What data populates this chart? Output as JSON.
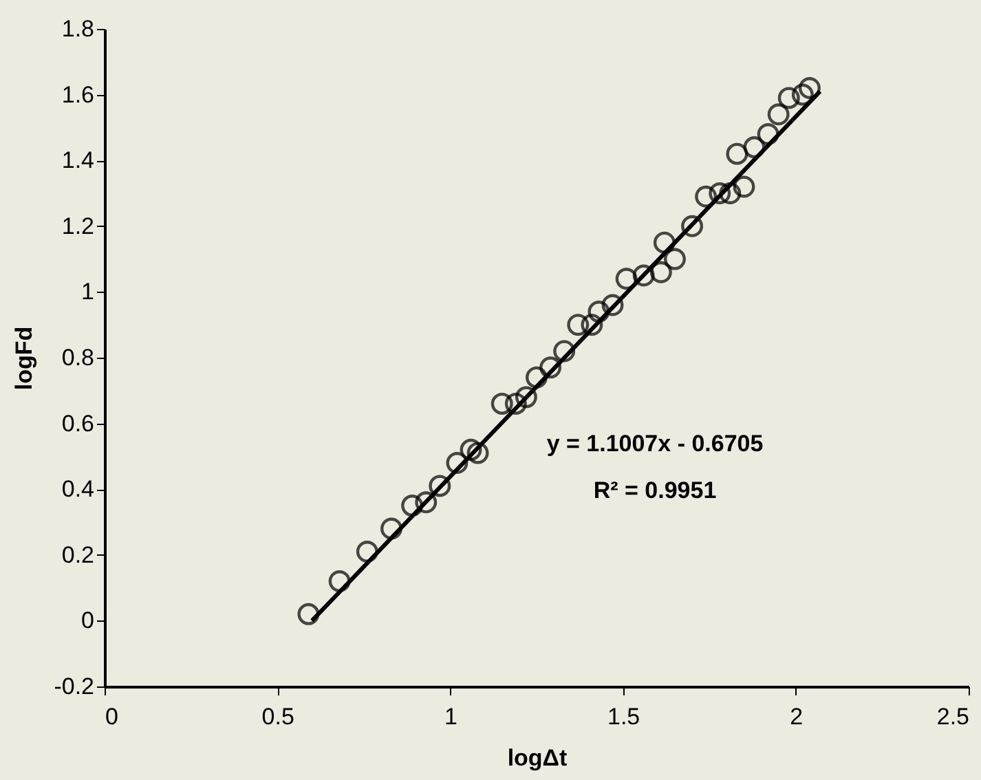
{
  "chart_data": {
    "type": "scatter",
    "xlabel": "logΔt",
    "ylabel": "logFd",
    "xlim": [
      0,
      2.5
    ],
    "xticks": [
      0,
      0.5,
      1,
      1.5,
      2,
      2.5
    ],
    "ylim": [
      -0.2,
      1.8
    ],
    "yticks": [
      -0.2,
      0,
      0.2,
      0.4,
      0.6,
      0.8,
      1,
      1.2,
      1.4,
      1.6,
      1.8
    ],
    "grid": false,
    "annotations": [
      "y = 1.1007x - 0.6705",
      "R² = 0.9951"
    ],
    "series": [
      {
        "marker": "circle",
        "color": "#000000",
        "x": [
          0.59,
          0.68,
          0.76,
          0.83,
          0.89,
          0.93,
          0.97,
          1.02,
          1.06,
          1.08,
          1.15,
          1.19,
          1.22,
          1.25,
          1.29,
          1.33,
          1.37,
          1.41,
          1.43,
          1.47,
          1.51,
          1.56,
          1.61,
          1.62,
          1.65,
          1.7,
          1.74,
          1.78,
          1.81,
          1.85,
          1.83,
          1.88,
          1.92,
          1.95,
          1.98,
          2.02,
          2.04
        ],
        "values": [
          0.02,
          0.12,
          0.21,
          0.28,
          0.35,
          0.36,
          0.41,
          0.48,
          0.52,
          0.51,
          0.66,
          0.66,
          0.68,
          0.74,
          0.77,
          0.82,
          0.9,
          0.9,
          0.94,
          0.96,
          1.04,
          1.05,
          1.06,
          1.15,
          1.1,
          1.2,
          1.29,
          1.3,
          1.3,
          1.32,
          1.42,
          1.44,
          1.48,
          1.54,
          1.59,
          1.6,
          1.62
        ]
      },
      {
        "type": "line",
        "color": "#000000",
        "line_style": "solid",
        "x": [
          0.6,
          2.07
        ],
        "values": [
          0.0,
          1.61
        ]
      }
    ]
  }
}
